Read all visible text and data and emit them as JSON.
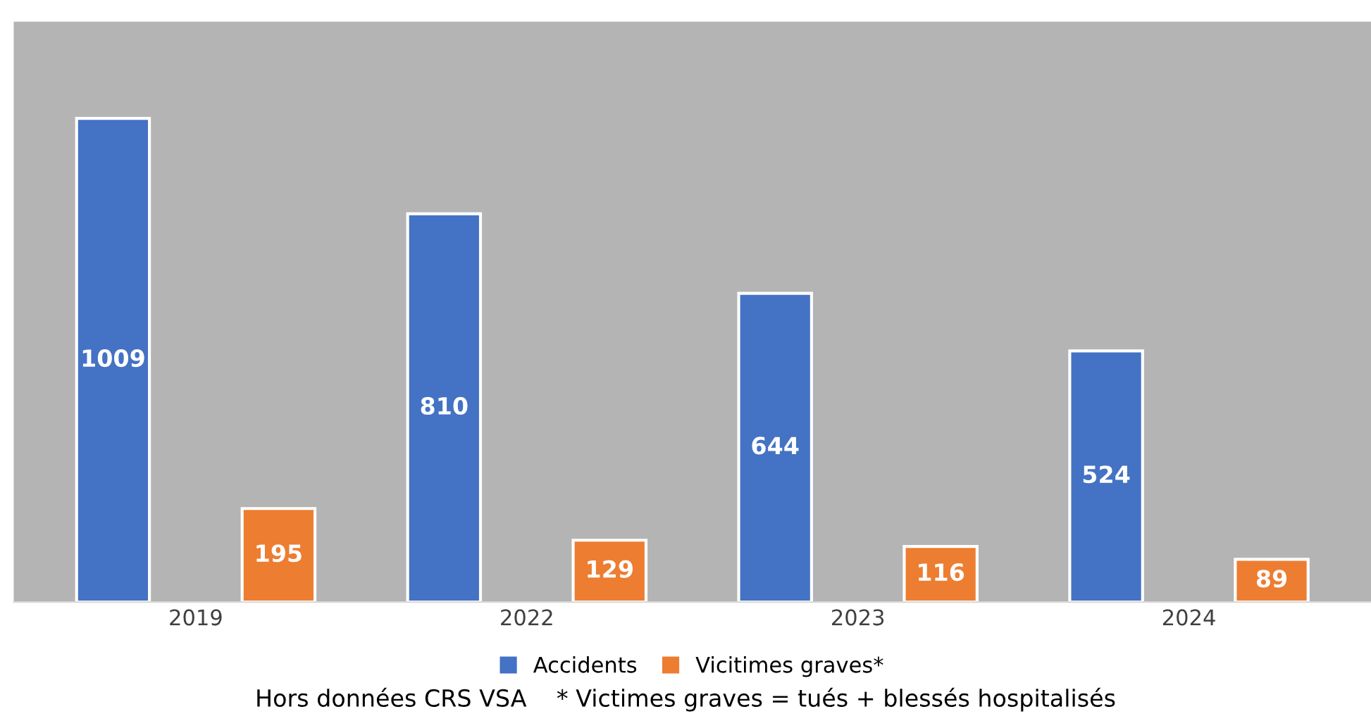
{
  "chart_data": {
    "type": "bar",
    "categories": [
      "2019",
      "2022",
      "2023",
      "2024"
    ],
    "series": [
      {
        "name": "Accidents",
        "color": "#4472c4",
        "values": [
          1009,
          810,
          644,
          524
        ]
      },
      {
        "name": "Vicitimes graves*",
        "color": "#ed7d31",
        "values": [
          195,
          129,
          116,
          89
        ]
      }
    ],
    "data_labels": true,
    "legend": "bottom",
    "grid": false,
    "tick_labels": "x",
    "annotations": [
      "Hors données CRS VSA    * Victimes graves = tués + blessés hospitalisés"
    ]
  }
}
